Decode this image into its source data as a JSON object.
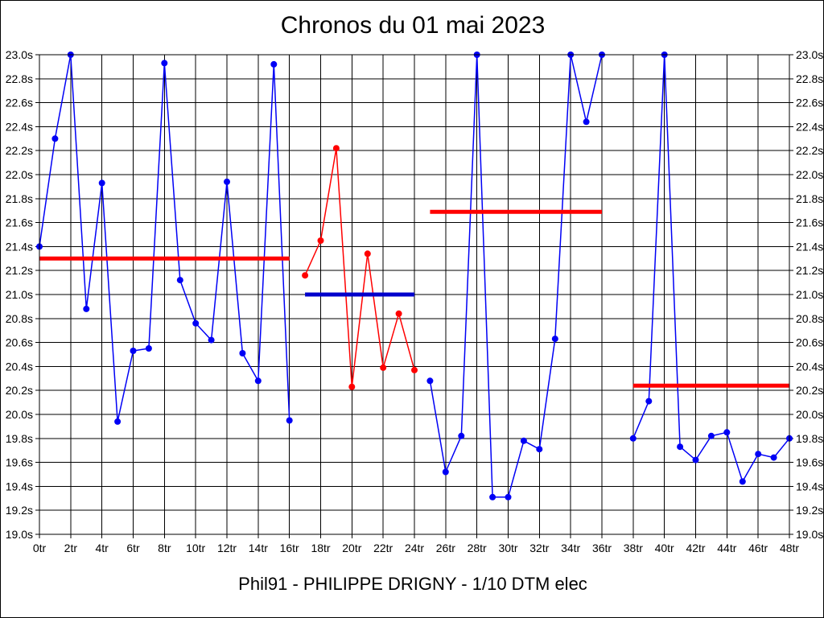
{
  "chart_data": {
    "type": "line",
    "title": "Chronos du 01 mai 2023",
    "caption": "Phil91 - PHILIPPE DRIGNY - 1/10 DTM elec",
    "xlabel": "",
    "ylabel": "",
    "x_unit": "tr",
    "y_unit": "s",
    "xlim": [
      0,
      48
    ],
    "ylim": [
      19.0,
      23.0
    ],
    "x_tick_step": 2,
    "y_tick_step": 0.2,
    "grid": true,
    "legend_position": "none",
    "x_tick_labels": [
      "0tr",
      "2tr",
      "4tr",
      "6tr",
      "8tr",
      "10tr",
      "12tr",
      "14tr",
      "16tr",
      "18tr",
      "20tr",
      "22tr",
      "24tr",
      "26tr",
      "28tr",
      "30tr",
      "32tr",
      "34tr",
      "36tr",
      "38tr",
      "40tr",
      "42tr",
      "44tr",
      "46tr",
      "48tr"
    ],
    "y_tick_labels": [
      "23.0s",
      "22.8s",
      "22.6s",
      "22.4s",
      "22.2s",
      "22.0s",
      "21.8s",
      "21.6s",
      "21.4s",
      "21.2s",
      "21.0s",
      "20.8s",
      "20.6s",
      "20.4s",
      "20.2s",
      "20.0s",
      "19.8s",
      "19.6s",
      "19.4s",
      "19.2s",
      "19.0s"
    ],
    "colors": {
      "blue_series": "#0000F5",
      "red_series": "#FF0000",
      "avg_red": "#FF0000",
      "avg_navy": "#0000CC",
      "grid": "#000000",
      "background": "#FFFFFF"
    },
    "series": [
      {
        "name": "stint-1-blue",
        "color": "#0000F5",
        "points": [
          [
            0,
            21.4
          ],
          [
            1,
            22.3
          ],
          [
            2,
            23.0
          ],
          [
            3,
            20.88
          ],
          [
            4,
            21.93
          ],
          [
            5,
            19.94
          ],
          [
            6,
            20.53
          ],
          [
            7,
            20.55
          ],
          [
            8,
            22.93
          ],
          [
            9,
            21.12
          ],
          [
            10,
            20.76
          ],
          [
            11,
            20.62
          ],
          [
            12,
            21.94
          ],
          [
            13,
            20.51
          ],
          [
            14,
            20.28
          ],
          [
            15,
            22.92
          ],
          [
            16,
            19.95
          ]
        ]
      },
      {
        "name": "stint-2-red",
        "color": "#FF0000",
        "points": [
          [
            17,
            21.16
          ],
          [
            18,
            21.45
          ],
          [
            19,
            22.22
          ],
          [
            20,
            20.23
          ],
          [
            21,
            21.34
          ],
          [
            22,
            20.39
          ],
          [
            23,
            20.84
          ],
          [
            24,
            20.37
          ]
        ]
      },
      {
        "name": "stint-3-blue",
        "color": "#0000F5",
        "points": [
          [
            25,
            20.28
          ],
          [
            26,
            19.52
          ],
          [
            27,
            19.82
          ],
          [
            28,
            23.0
          ],
          [
            29,
            19.31
          ],
          [
            30,
            19.31
          ],
          [
            31,
            19.78
          ],
          [
            32,
            19.71
          ],
          [
            33,
            20.63
          ],
          [
            34,
            23.0
          ],
          [
            35,
            22.44
          ],
          [
            36,
            23.0
          ]
        ]
      },
      {
        "name": "stint-4-blue",
        "color": "#0000F5",
        "points": [
          [
            38,
            19.8
          ],
          [
            39,
            20.11
          ],
          [
            40,
            23.0
          ],
          [
            41,
            19.73
          ],
          [
            42,
            19.62
          ],
          [
            43,
            19.82
          ],
          [
            44,
            19.85
          ],
          [
            45,
            19.44
          ],
          [
            46,
            19.67
          ],
          [
            47,
            19.64
          ],
          [
            48,
            19.8
          ]
        ]
      }
    ],
    "avg_lines": [
      {
        "name": "avg-stint-1",
        "color": "#FF0000",
        "y": 21.3,
        "x_start": 0,
        "x_end": 16
      },
      {
        "name": "avg-stint-2",
        "color": "#0000CC",
        "y": 21.0,
        "x_start": 17,
        "x_end": 24
      },
      {
        "name": "avg-stint-3",
        "color": "#FF0000",
        "y": 21.69,
        "x_start": 25,
        "x_end": 36
      },
      {
        "name": "avg-stint-4",
        "color": "#FF0000",
        "y": 20.24,
        "x_start": 38,
        "x_end": 48
      }
    ]
  }
}
